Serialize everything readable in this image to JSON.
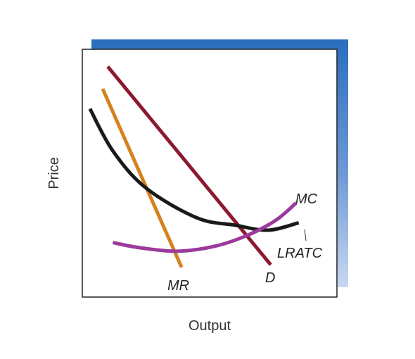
{
  "chart_data": {
    "type": "line",
    "title": "",
    "xlabel": "Output",
    "ylabel": "Price",
    "xlim": [
      0,
      100
    ],
    "ylim": [
      0,
      100
    ],
    "grid": false,
    "legend": "none",
    "series": [
      {
        "name": "D",
        "color": "#8b1a2e",
        "points": [
          [
            10,
            93
          ],
          [
            74,
            13
          ]
        ]
      },
      {
        "name": "MR",
        "color": "#d4821e",
        "points": [
          [
            8,
            84
          ],
          [
            39,
            12
          ]
        ]
      },
      {
        "name": "LRATC",
        "color": "#1a1a1a",
        "points": [
          [
            3,
            76
          ],
          [
            12,
            59
          ],
          [
            25,
            44
          ],
          [
            45,
            32
          ],
          [
            60,
            29
          ],
          [
            73,
            27
          ],
          [
            85,
            30
          ]
        ]
      },
      {
        "name": "MC",
        "color": "#9b3a9b",
        "points": [
          [
            12,
            22
          ],
          [
            22,
            20
          ],
          [
            37,
            18.5
          ],
          [
            52,
            20.5
          ],
          [
            65,
            25
          ],
          [
            76,
            31
          ],
          [
            84,
            38
          ]
        ]
      }
    ]
  }
}
